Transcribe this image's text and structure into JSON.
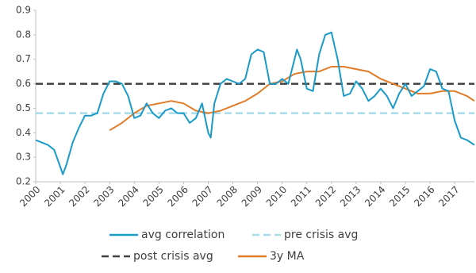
{
  "chart_data": {
    "type": "line",
    "xlim": [
      2000,
      2017.8
    ],
    "xticks": [
      2000,
      2001,
      2002,
      2003,
      2004,
      2005,
      2006,
      2007,
      2008,
      2009,
      2010,
      2011,
      2012,
      2013,
      2014,
      2015,
      2016,
      2017
    ],
    "ylim": [
      0.2,
      0.9
    ],
    "yticks": [
      0.2,
      0.3,
      0.4,
      0.5,
      0.6,
      0.7,
      0.8,
      0.9
    ],
    "legend": "bottom",
    "series": [
      {
        "name": "avg correlation",
        "color": "#1a9ac9",
        "dashed": false,
        "x": [
          2000,
          2000.25,
          2000.5,
          2000.75,
          2001,
          2001.1,
          2001.25,
          2001.5,
          2001.75,
          2002,
          2002.25,
          2002.5,
          2002.75,
          2003,
          2003.25,
          2003.5,
          2003.75,
          2004,
          2004.25,
          2004.5,
          2004.75,
          2005,
          2005.25,
          2005.5,
          2005.75,
          2006,
          2006.25,
          2006.5,
          2006.75,
          2007,
          2007.1,
          2007.25,
          2007.5,
          2007.75,
          2008,
          2008.25,
          2008.5,
          2008.75,
          2009,
          2009.25,
          2009.5,
          2009.75,
          2010,
          2010.25,
          2010.5,
          2010.6,
          2010.75,
          2011,
          2011.25,
          2011.5,
          2011.75,
          2012,
          2012.25,
          2012.5,
          2012.75,
          2013,
          2013.25,
          2013.5,
          2013.75,
          2014,
          2014.25,
          2014.5,
          2014.75,
          2015,
          2015.25,
          2015.5,
          2015.75,
          2016,
          2016.25,
          2016.5,
          2016.75,
          2017,
          2017.25,
          2017.5,
          2017.8
        ],
        "values": [
          0.37,
          0.36,
          0.35,
          0.33,
          0.26,
          0.23,
          0.27,
          0.36,
          0.42,
          0.47,
          0.47,
          0.48,
          0.56,
          0.61,
          0.61,
          0.6,
          0.55,
          0.46,
          0.47,
          0.52,
          0.48,
          0.46,
          0.49,
          0.5,
          0.48,
          0.48,
          0.44,
          0.46,
          0.52,
          0.4,
          0.38,
          0.52,
          0.6,
          0.62,
          0.61,
          0.6,
          0.62,
          0.72,
          0.74,
          0.73,
          0.6,
          0.6,
          0.62,
          0.6,
          0.7,
          0.74,
          0.7,
          0.58,
          0.57,
          0.72,
          0.8,
          0.81,
          0.7,
          0.55,
          0.56,
          0.61,
          0.58,
          0.53,
          0.55,
          0.58,
          0.55,
          0.5,
          0.56,
          0.6,
          0.55,
          0.57,
          0.59,
          0.66,
          0.65,
          0.58,
          0.57,
          0.45,
          0.38,
          0.37,
          0.35
        ]
      },
      {
        "name": "pre crisis avg",
        "color": "#a9dcea",
        "dashed": true,
        "x": [
          2000,
          2017.8
        ],
        "values": [
          0.48,
          0.48
        ]
      },
      {
        "name": "post crisis avg",
        "color": "#404040",
        "dashed": true,
        "x": [
          2000,
          2017.8
        ],
        "values": [
          0.6,
          0.6
        ]
      },
      {
        "name": "3y MA",
        "color": "#e07b28",
        "dashed": false,
        "x": [
          2003,
          2003.5,
          2004,
          2004.5,
          2005,
          2005.5,
          2006,
          2006.5,
          2007,
          2007.5,
          2008,
          2008.5,
          2009,
          2009.5,
          2010,
          2010.5,
          2011,
          2011.5,
          2012,
          2012.5,
          2013,
          2013.5,
          2014,
          2014.5,
          2015,
          2015.5,
          2016,
          2016.5,
          2017,
          2017.5,
          2017.8
        ],
        "values": [
          0.41,
          0.44,
          0.48,
          0.51,
          0.52,
          0.53,
          0.52,
          0.49,
          0.48,
          0.49,
          0.51,
          0.53,
          0.56,
          0.6,
          0.61,
          0.64,
          0.65,
          0.65,
          0.67,
          0.67,
          0.66,
          0.65,
          0.62,
          0.6,
          0.58,
          0.56,
          0.56,
          0.57,
          0.57,
          0.55,
          0.53
        ]
      }
    ]
  }
}
